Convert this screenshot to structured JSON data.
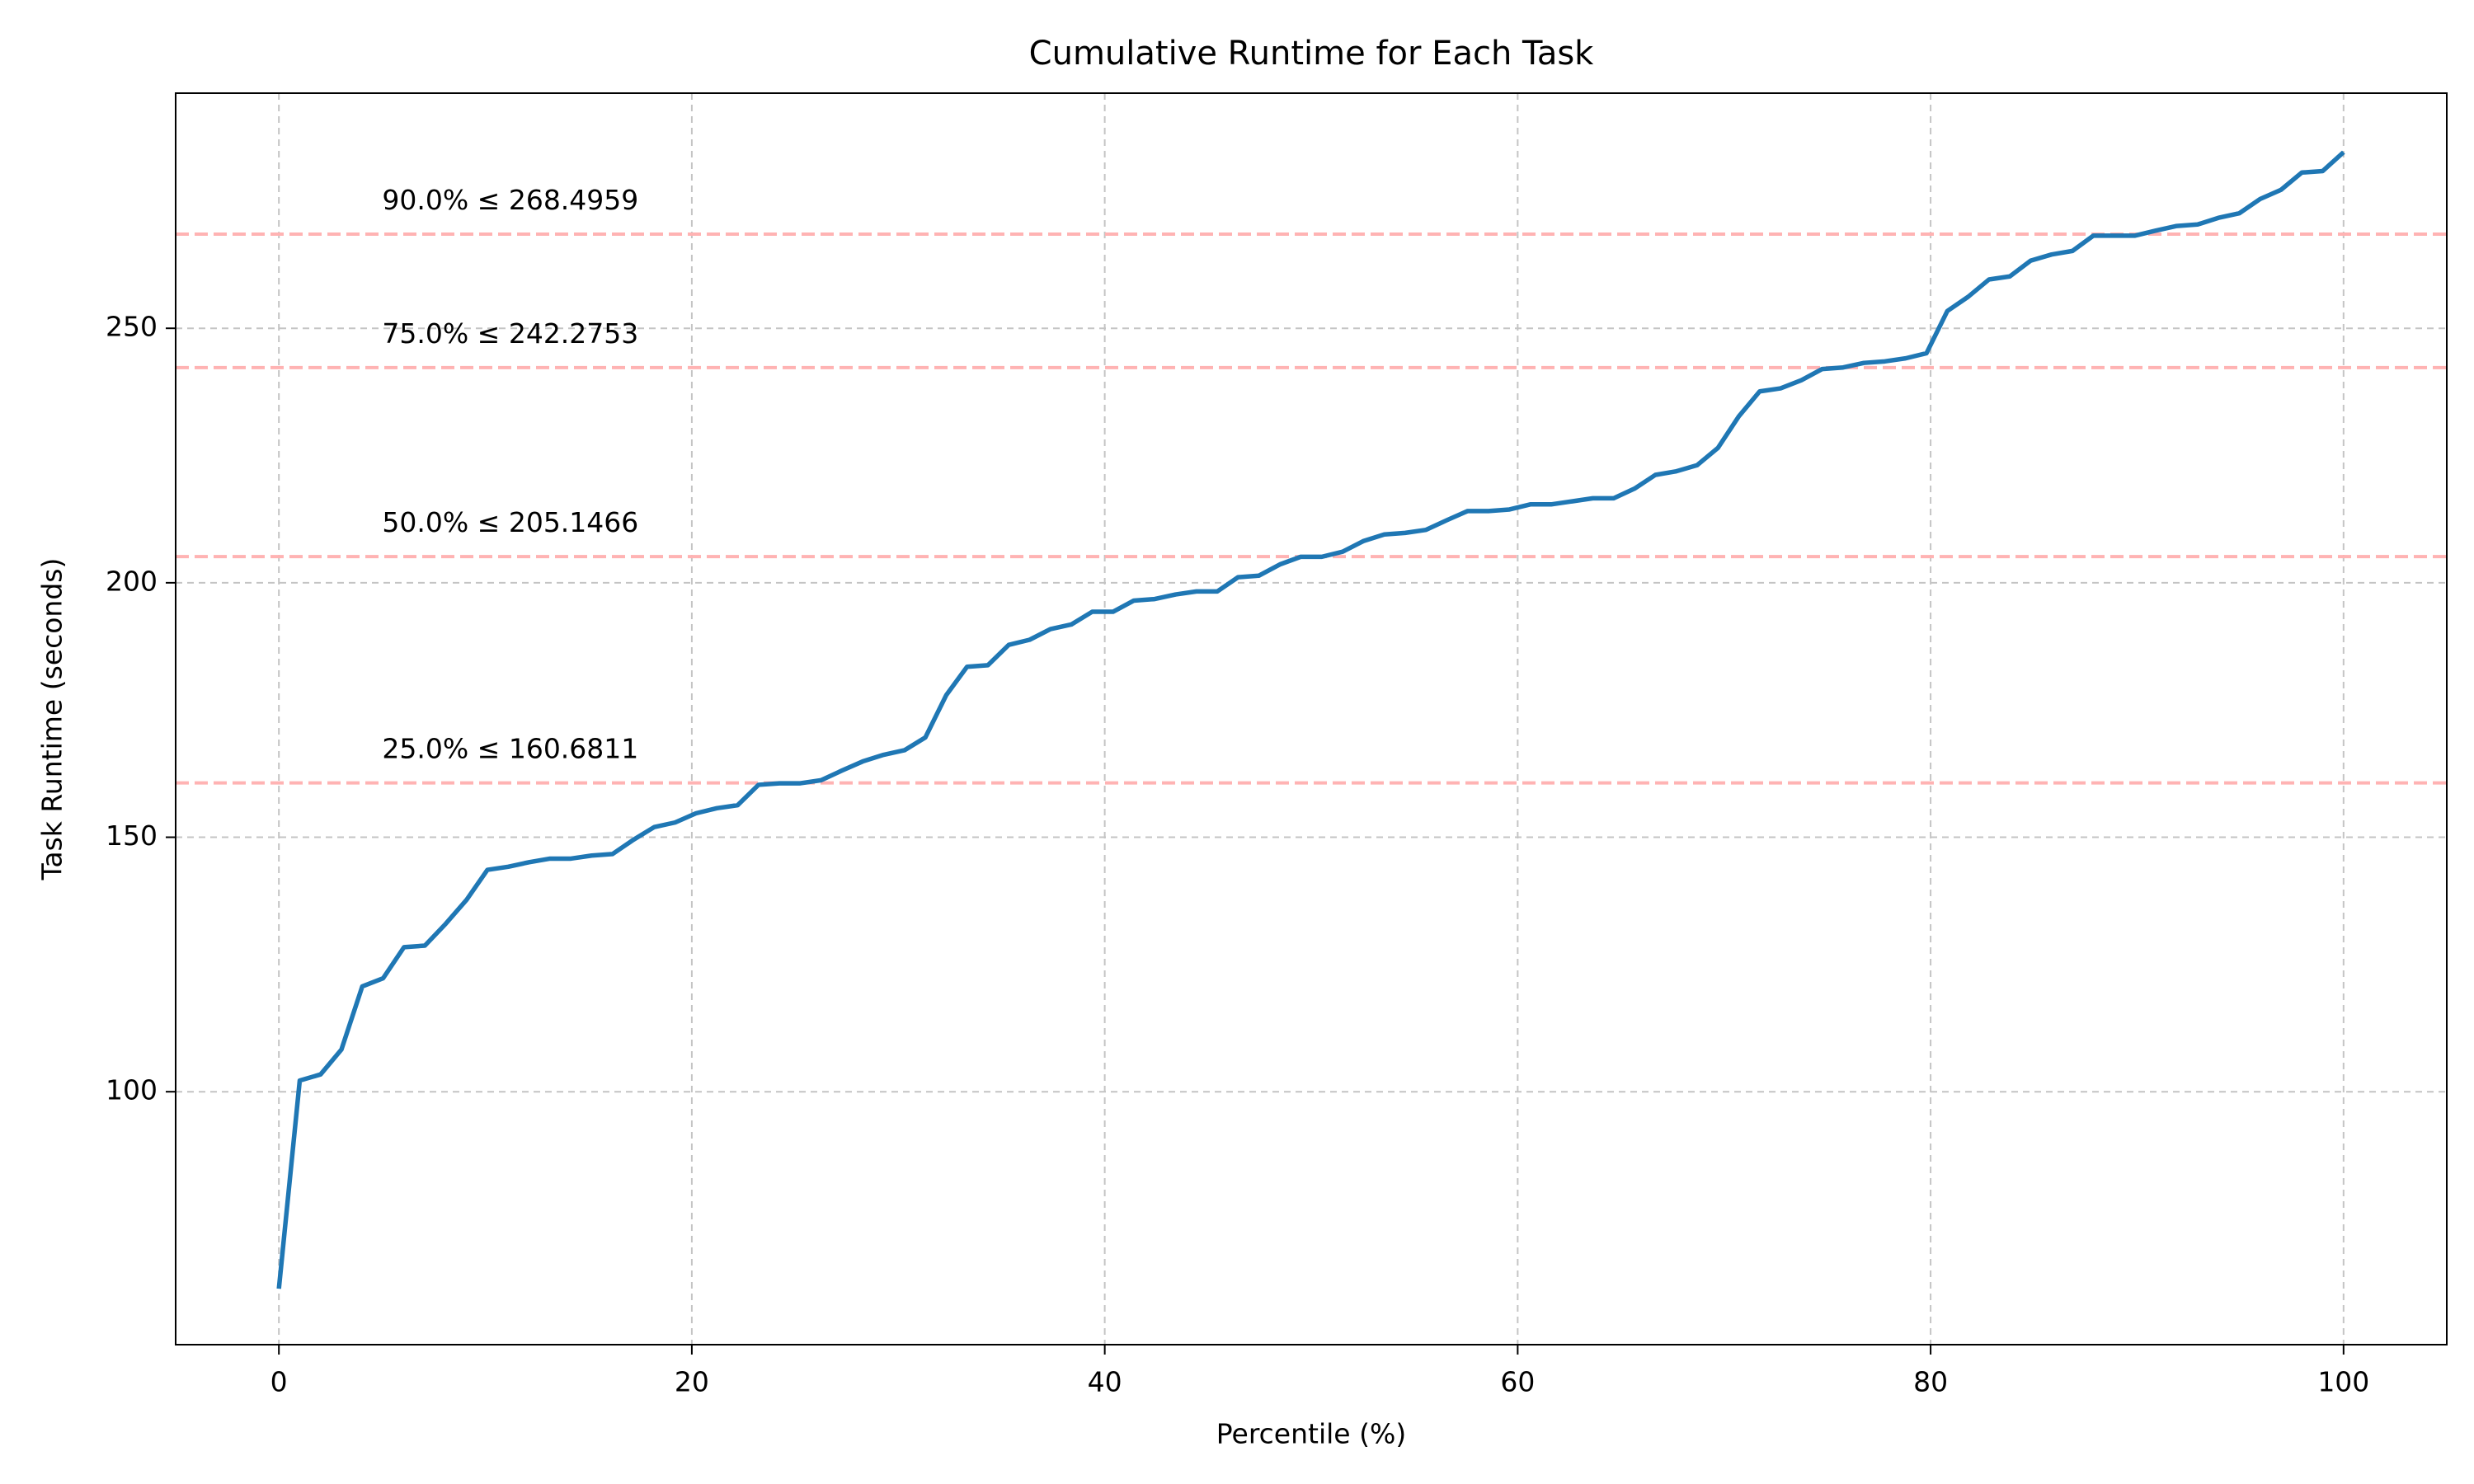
{
  "chart_data": {
    "type": "line",
    "title": "Cumulative Runtime for Each Task",
    "xlabel": "Percentile (%)",
    "ylabel": "Task Runtime (seconds)",
    "x": [
      0,
      1.01,
      2.02,
      3.03,
      4.04,
      5.05,
      6.06,
      7.07,
      8.08,
      9.09,
      10.1,
      11.11,
      12.12,
      13.13,
      14.14,
      15.15,
      16.16,
      17.17,
      18.18,
      19.19,
      20.2,
      21.21,
      22.22,
      23.23,
      24.24,
      25.25,
      26.26,
      27.27,
      28.28,
      29.29,
      30.3,
      31.31,
      32.32,
      33.33,
      34.34,
      35.35,
      36.36,
      37.37,
      38.38,
      39.39,
      40.4,
      41.41,
      42.42,
      43.43,
      44.44,
      45.45,
      46.46,
      47.47,
      48.48,
      49.49,
      50.51,
      51.52,
      52.53,
      53.54,
      54.55,
      55.56,
      56.57,
      57.58,
      58.59,
      59.6,
      60.61,
      61.62,
      62.63,
      63.64,
      64.65,
      65.66,
      66.67,
      67.68,
      68.69,
      69.7,
      70.71,
      71.72,
      72.73,
      73.74,
      74.75,
      75.76,
      76.77,
      77.78,
      78.79,
      79.8,
      80.81,
      81.82,
      82.83,
      83.84,
      84.85,
      85.86,
      86.87,
      87.88,
      88.89,
      89.9,
      90.91,
      91.92,
      92.93,
      93.94,
      94.95,
      95.96,
      96.97,
      97.98,
      98.99,
      100
    ],
    "series": [
      {
        "color": "#1f77b4",
        "values": [
          61.3,
          102.2,
          103.4,
          108.3,
          120.7,
          122.3,
          128.4,
          128.7,
          133,
          137.7,
          143.6,
          144.2,
          145.1,
          145.8,
          145.8,
          146.4,
          146.7,
          149.5,
          152,
          152.9,
          154.7,
          155.7,
          156.3,
          160.3,
          160.6,
          160.6,
          161.2,
          163.1,
          164.9,
          166.2,
          167.1,
          169.6,
          177.9,
          183.5,
          183.8,
          187.8,
          188.8,
          190.9,
          191.8,
          194.3,
          194.3,
          196.5,
          196.8,
          197.7,
          198.3,
          198.3,
          201.1,
          201.4,
          203.6,
          205.1,
          205.1,
          206.1,
          208.2,
          209.5,
          209.8,
          210.4,
          212.3,
          214.1,
          214.1,
          214.4,
          215.4,
          215.4,
          216,
          216.6,
          216.6,
          218.5,
          221.2,
          221.9,
          223.1,
          226.5,
          232.7,
          237.6,
          238.2,
          239.8,
          242,
          242.3,
          243.2,
          243.5,
          244.1,
          245.1,
          253.4,
          256.2,
          259.6,
          260.2,
          263.3,
          264.5,
          265.2,
          268.2,
          268.2,
          268.2,
          269.2,
          270.1,
          270.4,
          271.7,
          272.6,
          275.4,
          277.2,
          280.6,
          280.9,
          284.6
        ]
      }
    ],
    "reference_lines": [
      {
        "value": 160.6811,
        "label": "25.0% ≤ 160.6811"
      },
      {
        "value": 205.1466,
        "label": "50.0% ≤ 205.1466"
      },
      {
        "value": 242.2753,
        "label": "75.0% ≤ 242.2753"
      },
      {
        "value": 268.4959,
        "label": "90.0% ≤ 268.4959"
      }
    ],
    "reference_line_color": "#ffb3b3",
    "reference_label_color": "#ff0000",
    "reference_label_x": 5,
    "xlim": [
      -5,
      105
    ],
    "ylim": [
      50.3,
      296.2
    ],
    "xticks": [
      0,
      20,
      40,
      60,
      80,
      100
    ],
    "yticks": [
      100,
      150,
      200,
      250
    ],
    "grid": true
  }
}
